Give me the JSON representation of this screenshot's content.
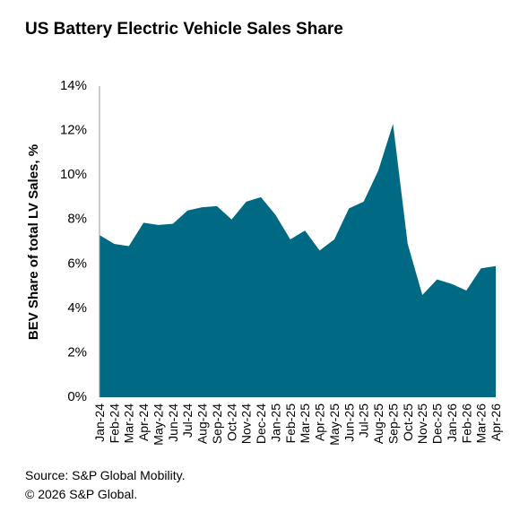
{
  "chart_data": {
    "type": "area",
    "title": "US Battery Electric Vehicle Sales Share",
    "y_label": "BEV Share of total LV Sales, %",
    "source": "Source: S&P Global Mobility.",
    "copyright": "© 2026 S&P Global.",
    "categories": [
      "Jan-24",
      "Feb-24",
      "Mar-24",
      "Apr-24",
      "May-24",
      "Jun-24",
      "Jul-24",
      "Aug-24",
      "Sep-24",
      "Oct-24",
      "Nov-24",
      "Dec-24",
      "Jan-25",
      "Feb-25",
      "Mar-25",
      "Apr-25",
      "May-25",
      "Jun-25",
      "Jul-25",
      "Aug-25",
      "Sep-25",
      "Oct-25",
      "Nov-25",
      "Dec-25",
      "Jan-26",
      "Feb-26",
      "Mar-26",
      "Apr-26"
    ],
    "values": [
      7.3,
      6.9,
      6.8,
      7.85,
      7.75,
      7.8,
      8.4,
      8.55,
      8.6,
      8.0,
      8.8,
      9.0,
      8.2,
      7.1,
      7.5,
      6.6,
      7.1,
      8.5,
      8.8,
      10.2,
      12.3,
      6.9,
      4.6,
      5.3,
      5.1,
      4.8,
      5.8,
      5.9
    ],
    "color": "#006a84",
    "ylim": [
      0,
      14
    ],
    "yticks": [
      {
        "value": 0,
        "label": "0%"
      },
      {
        "value": 2,
        "label": "2%"
      },
      {
        "value": 4,
        "label": "4%"
      },
      {
        "value": 6,
        "label": "6%"
      },
      {
        "value": 8,
        "label": "8%"
      },
      {
        "value": 10,
        "label": "10%"
      },
      {
        "value": 12,
        "label": "12%"
      },
      {
        "value": 14,
        "label": "14%"
      }
    ],
    "grid": false
  }
}
